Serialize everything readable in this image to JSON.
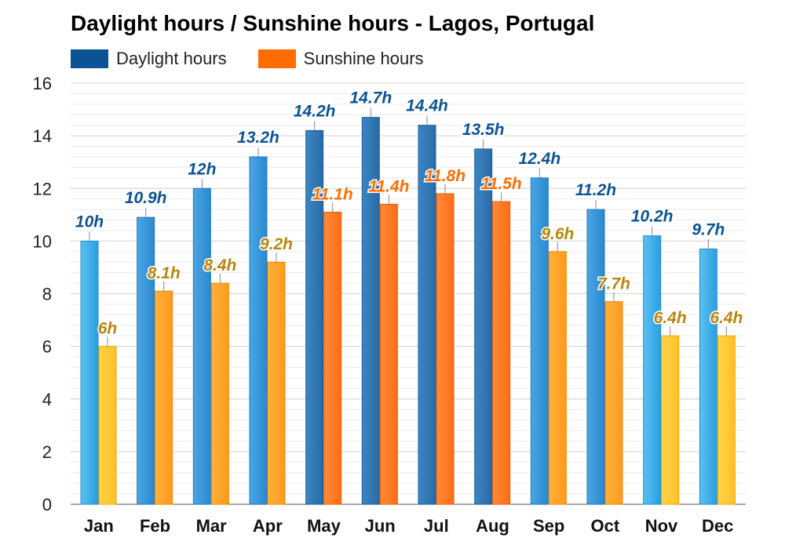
{
  "chart_data": {
    "type": "bar",
    "title": "Daylight hours / Sunshine hours - Lagos, Portugal",
    "xlabel": "",
    "ylabel": "",
    "ylim": [
      0,
      16
    ],
    "yticks": [
      0,
      2,
      4,
      6,
      8,
      10,
      12,
      14,
      16
    ],
    "grid": true,
    "legend_position": "top-left",
    "value_suffix": "h",
    "categories": [
      "Jan",
      "Feb",
      "Mar",
      "Apr",
      "May",
      "Jun",
      "Jul",
      "Aug",
      "Sep",
      "Oct",
      "Nov",
      "Dec"
    ],
    "series": [
      {
        "name": "Daylight hours",
        "color": "#0b5394",
        "values": [
          10,
          10.9,
          12,
          13.2,
          14.2,
          14.7,
          14.4,
          13.5,
          12.4,
          11.2,
          10.2,
          9.7
        ]
      },
      {
        "name": "Sunshine hours",
        "color": "#ff6d00",
        "values": [
          6,
          8.1,
          8.4,
          9.2,
          11.1,
          11.4,
          11.8,
          11.5,
          9.6,
          7.7,
          6.4,
          6.4
        ]
      }
    ]
  },
  "colors": {
    "daylight_label": "#0b5394",
    "sunshine_label_hot": "#ff6d00",
    "sunshine_label_mild": "#b8860b"
  }
}
